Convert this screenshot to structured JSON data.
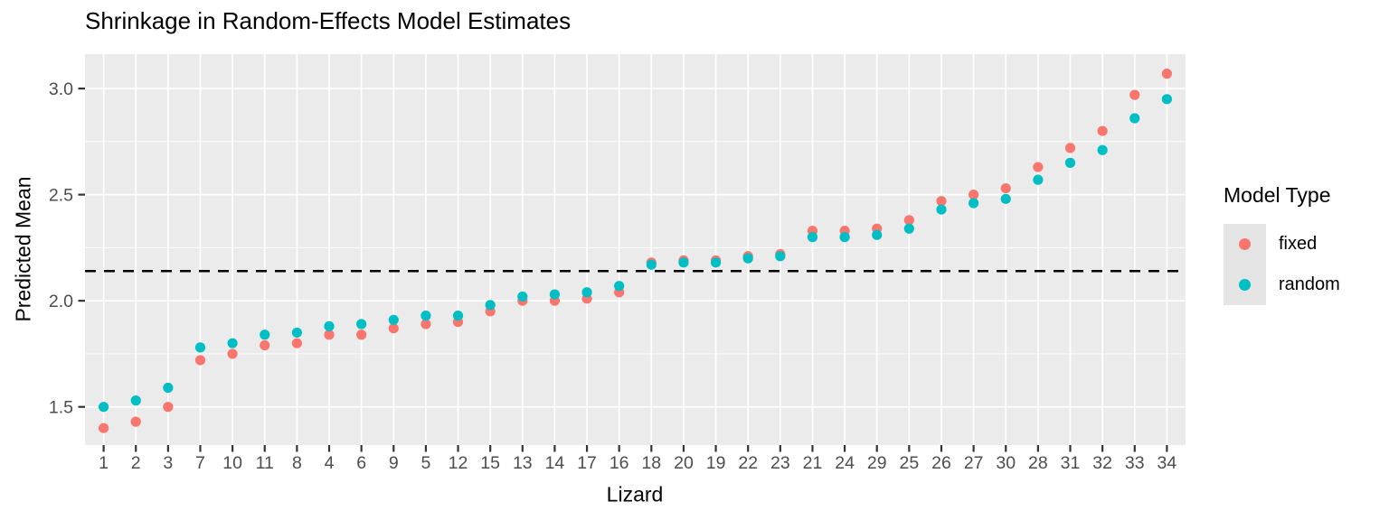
{
  "title": "Shrinkage in Random-Effects Model Estimates",
  "chart_data": {
    "type": "scatter",
    "title": "Shrinkage in Random-Effects Model Estimates",
    "xlabel": "Lizard",
    "ylabel": "Predicted Mean",
    "categories": [
      "1",
      "2",
      "3",
      "7",
      "10",
      "11",
      "8",
      "4",
      "6",
      "9",
      "5",
      "12",
      "15",
      "13",
      "14",
      "17",
      "16",
      "18",
      "20",
      "19",
      "22",
      "23",
      "21",
      "24",
      "29",
      "25",
      "26",
      "27",
      "30",
      "28",
      "31",
      "32",
      "33",
      "34"
    ],
    "series": [
      {
        "name": "fixed",
        "color": "#F8766D",
        "values": [
          1.4,
          1.43,
          1.5,
          1.72,
          1.75,
          1.79,
          1.8,
          1.84,
          1.84,
          1.87,
          1.89,
          1.9,
          1.95,
          2.0,
          2.0,
          2.01,
          2.04,
          2.18,
          2.19,
          2.19,
          2.21,
          2.22,
          2.33,
          2.33,
          2.34,
          2.38,
          2.47,
          2.5,
          2.53,
          2.63,
          2.72,
          2.8,
          2.97,
          3.07
        ]
      },
      {
        "name": "random",
        "color": "#00BFC4",
        "values": [
          1.5,
          1.53,
          1.59,
          1.78,
          1.8,
          1.84,
          1.85,
          1.88,
          1.89,
          1.91,
          1.93,
          1.93,
          1.98,
          2.02,
          2.03,
          2.04,
          2.07,
          2.17,
          2.18,
          2.18,
          2.2,
          2.21,
          2.3,
          2.3,
          2.31,
          2.34,
          2.43,
          2.46,
          2.48,
          2.57,
          2.65,
          2.71,
          2.86,
          2.95
        ]
      }
    ],
    "reference_line": {
      "value": 2.14,
      "style": "dashed",
      "color": "#000000"
    },
    "y_ticks": [
      1.5,
      2.0,
      2.5,
      3.0
    ],
    "y_tick_labels": [
      "1.5",
      "2.0",
      "2.5",
      "3.0"
    ],
    "y_minor_ticks": [
      1.75,
      2.25,
      2.75
    ],
    "ylim": [
      1.32,
      3.162
    ],
    "grid": true,
    "panel_bg": "#EBEBEB",
    "grid_color": "#FFFFFF",
    "tick_label_color": "#4D4D4D",
    "tick_mark_color": "#333333",
    "legend": {
      "title": "Model Type",
      "position": "right",
      "items": [
        {
          "label": "fixed",
          "color": "#F8766D"
        },
        {
          "label": "random",
          "color": "#00BFC4"
        }
      ]
    }
  }
}
